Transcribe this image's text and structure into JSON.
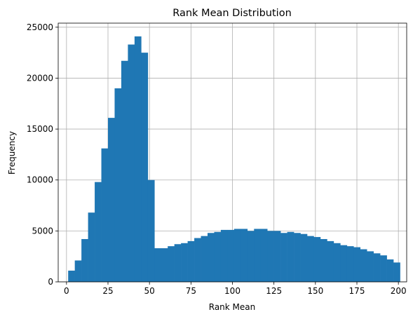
{
  "chart_data": {
    "type": "bar",
    "title": "Rank Mean Distribution",
    "xlabel": "Rank Mean",
    "ylabel": "Frequency",
    "xlim": [
      -5,
      205
    ],
    "ylim": [
      0,
      25400
    ],
    "grid": true,
    "bar_color": "#1f77b4",
    "x_ticks": [
      0,
      25,
      50,
      75,
      100,
      125,
      150,
      175,
      200
    ],
    "y_ticks": [
      0,
      5000,
      10000,
      15000,
      20000,
      25000
    ],
    "bins": [
      [
        1,
        5,
        1100
      ],
      [
        5,
        9,
        2100
      ],
      [
        9,
        13,
        4200
      ],
      [
        13,
        17,
        6800
      ],
      [
        17,
        21,
        9800
      ],
      [
        21,
        25,
        13100
      ],
      [
        25,
        29,
        16100
      ],
      [
        29,
        33,
        19000
      ],
      [
        33,
        37,
        21700
      ],
      [
        37,
        41,
        23300
      ],
      [
        41,
        45,
        24100
      ],
      [
        45,
        49,
        22500
      ],
      [
        49,
        53,
        10000
      ],
      [
        53,
        57,
        3300
      ],
      [
        57,
        61,
        3300
      ],
      [
        61,
        65,
        3500
      ],
      [
        65,
        69,
        3700
      ],
      [
        69,
        73,
        3800
      ],
      [
        73,
        77,
        4000
      ],
      [
        77,
        81,
        4300
      ],
      [
        81,
        85,
        4500
      ],
      [
        85,
        89,
        4800
      ],
      [
        89,
        93,
        4900
      ],
      [
        93,
        97,
        5100
      ],
      [
        97,
        101,
        5100
      ],
      [
        101,
        105,
        5200
      ],
      [
        105,
        109,
        5200
      ],
      [
        109,
        113,
        5000
      ],
      [
        113,
        117,
        5200
      ],
      [
        117,
        121,
        5200
      ],
      [
        121,
        125,
        5000
      ],
      [
        125,
        129,
        5000
      ],
      [
        129,
        133,
        4800
      ],
      [
        133,
        137,
        4900
      ],
      [
        137,
        141,
        4800
      ],
      [
        141,
        145,
        4700
      ],
      [
        145,
        149,
        4500
      ],
      [
        149,
        153,
        4400
      ],
      [
        153,
        157,
        4200
      ],
      [
        157,
        161,
        4000
      ],
      [
        161,
        165,
        3800
      ],
      [
        165,
        169,
        3600
      ],
      [
        169,
        173,
        3500
      ],
      [
        173,
        177,
        3400
      ],
      [
        177,
        181,
        3200
      ],
      [
        181,
        185,
        3000
      ],
      [
        185,
        189,
        2800
      ],
      [
        189,
        193,
        2600
      ],
      [
        193,
        197,
        2200
      ],
      [
        197,
        201,
        1900
      ]
    ]
  }
}
